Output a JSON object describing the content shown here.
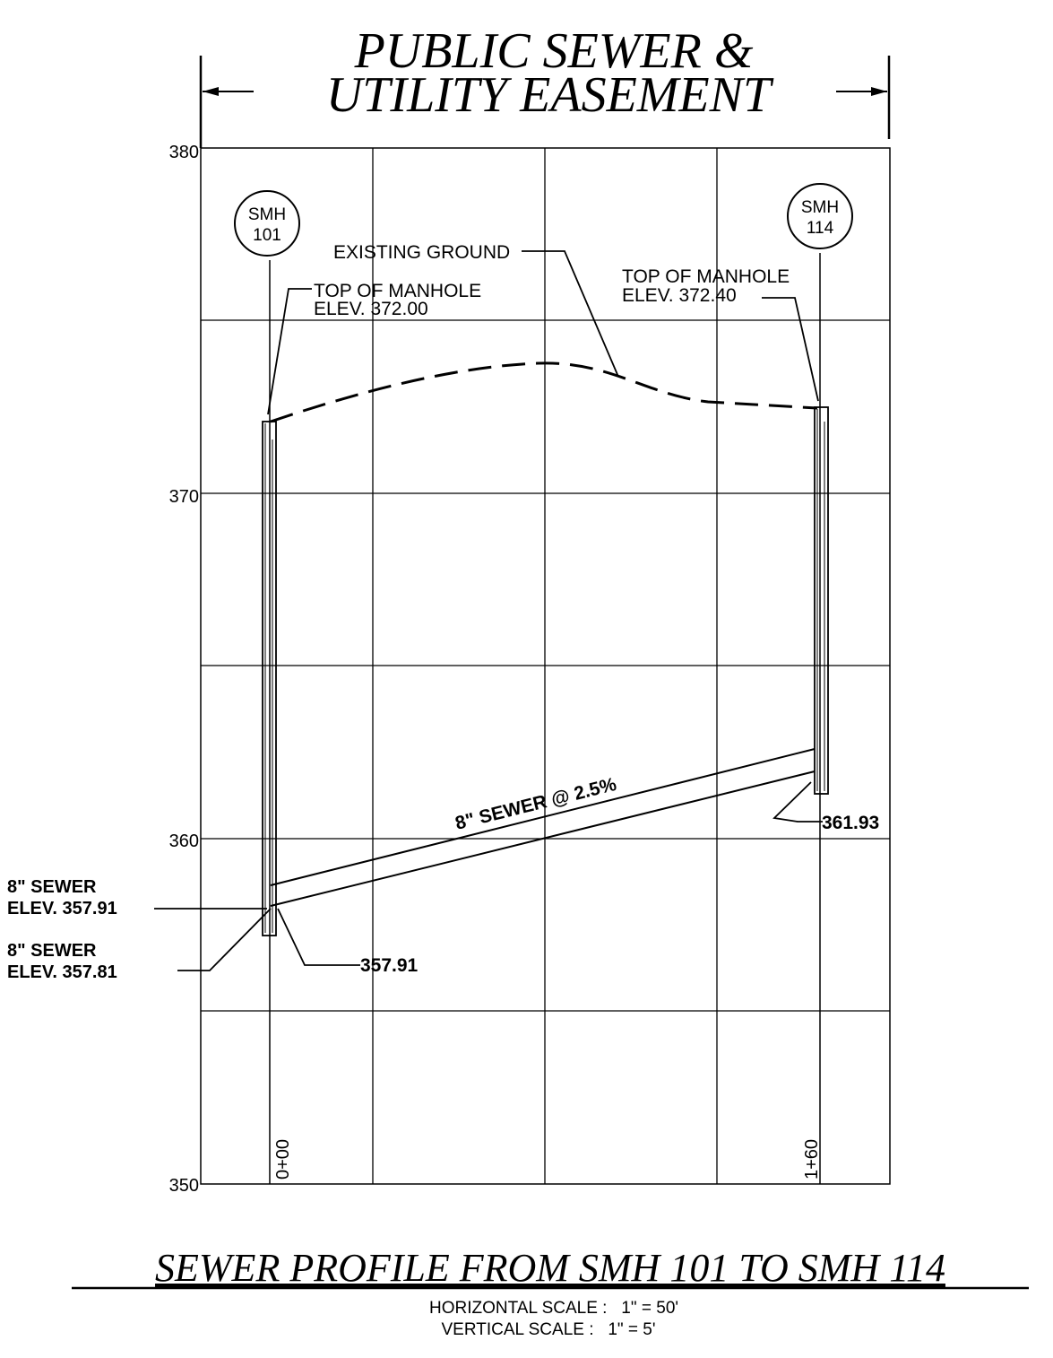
{
  "header": {
    "line1": "PUBLIC SEWER &",
    "line2": "UTILITY EASEMENT"
  },
  "axis": {
    "tick_labels": [
      "380",
      "370",
      "360",
      "350"
    ]
  },
  "manholes": [
    {
      "label_top": "SMH",
      "label_bottom": "101"
    },
    {
      "label_top": "SMH",
      "label_bottom": "114"
    }
  ],
  "stations": [
    "0+00",
    "1+60"
  ],
  "annotations": {
    "existing_ground": "EXISTING GROUND",
    "top_manhole_left_1": "TOP OF MANHOLE",
    "top_manhole_left_2": "ELEV. 372.00",
    "top_manhole_right_1": "TOP OF MANHOLE",
    "top_manhole_right_2": "ELEV. 372.40",
    "sewer_slope": "8\" SEWER @ 2.5%",
    "invert_right": "361.93",
    "invert_left": "357.91",
    "sewer_in_1": "8\" SEWER",
    "sewer_in_2": "ELEV. 357.91",
    "sewer_out_1": "8\" SEWER",
    "sewer_out_2": "ELEV. 357.81"
  },
  "footer": {
    "title": "SEWER PROFILE FROM SMH 101 TO SMH 114",
    "hscale": "HORIZONTAL SCALE :   1\" = 50'",
    "vscale": "VERTICAL SCALE :   1\" = 5'"
  }
}
